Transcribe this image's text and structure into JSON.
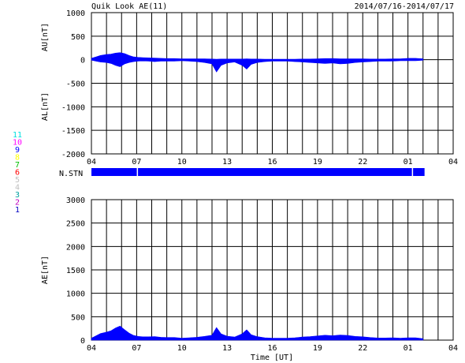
{
  "header": {
    "title": "Quik Look AE(11)",
    "date_range": "2014/07/16-2014/07/17"
  },
  "colors": {
    "fill": "#0000ff",
    "grid": "#000000"
  },
  "station_label": "N.STN",
  "chart_data": [
    {
      "type": "area",
      "name": "AU/AL",
      "ylabel_upper": "AU[nT]",
      "ylabel_lower": "AL[nT]",
      "xlabel": "",
      "ylim": [
        -2000,
        1000
      ],
      "xlim": [
        4,
        28
      ],
      "x_tick_labels": [
        "04",
        "07",
        "10",
        "13",
        "16",
        "19",
        "22",
        "01",
        "04"
      ],
      "y_ticks": [
        1000,
        500,
        0,
        -500,
        -1000,
        -1500,
        -2000
      ],
      "grid": true,
      "au": {
        "x": [
          4.0,
          4.3,
          4.6,
          5.0,
          5.3,
          5.6,
          5.9,
          6.2,
          6.5,
          6.8,
          7.1,
          7.4,
          7.8,
          8.2,
          8.6,
          9.0,
          9.5,
          10.0,
          10.5,
          11.0,
          11.5,
          12.0,
          12.3,
          12.6,
          13.0,
          13.5,
          14.0,
          14.3,
          14.6,
          15.0,
          15.5,
          16.0,
          16.5,
          17.0,
          17.5,
          18.0,
          18.5,
          19.0,
          19.5,
          20.0,
          20.5,
          21.0,
          21.5,
          22.0,
          22.5,
          23.0,
          23.5,
          24.0,
          24.5,
          25.0,
          25.5,
          26.0
        ],
        "y": [
          30,
          60,
          90,
          110,
          120,
          140,
          150,
          130,
          90,
          60,
          50,
          45,
          40,
          35,
          30,
          25,
          25,
          20,
          20,
          20,
          20,
          15,
          10,
          15,
          15,
          15,
          15,
          20,
          15,
          15,
          10,
          10,
          10,
          10,
          10,
          15,
          15,
          20,
          25,
          25,
          20,
          20,
          20,
          20,
          15,
          15,
          15,
          20,
          20,
          30,
          30,
          20
        ]
      },
      "al": {
        "x": [
          4.0,
          4.3,
          4.6,
          5.0,
          5.3,
          5.6,
          5.9,
          6.2,
          6.5,
          6.8,
          7.1,
          7.4,
          7.8,
          8.2,
          8.6,
          9.0,
          9.5,
          10.0,
          10.5,
          11.0,
          11.5,
          12.0,
          12.3,
          12.6,
          13.0,
          13.5,
          14.0,
          14.3,
          14.6,
          15.0,
          15.5,
          16.0,
          16.5,
          17.0,
          17.5,
          18.0,
          18.5,
          19.0,
          19.5,
          20.0,
          20.5,
          21.0,
          21.5,
          22.0,
          22.5,
          23.0,
          23.5,
          24.0,
          24.5,
          25.0,
          25.5,
          26.0
        ],
        "y": [
          -10,
          -30,
          -50,
          -60,
          -80,
          -120,
          -150,
          -90,
          -60,
          -40,
          -30,
          -25,
          -30,
          -40,
          -30,
          -30,
          -30,
          -20,
          -30,
          -40,
          -60,
          -90,
          -260,
          -120,
          -70,
          -50,
          -120,
          -200,
          -100,
          -60,
          -40,
          -30,
          -30,
          -30,
          -40,
          -50,
          -60,
          -70,
          -80,
          -70,
          -90,
          -80,
          -60,
          -50,
          -40,
          -30,
          -30,
          -30,
          -20,
          -20,
          -20,
          -10
        ]
      }
    },
    {
      "type": "area",
      "name": "AE",
      "ylabel": "AE[nT]",
      "xlabel": "Time [UT]",
      "ylim": [
        0,
        3000
      ],
      "xlim": [
        4,
        28
      ],
      "x_tick_labels": [
        "04",
        "07",
        "10",
        "13",
        "16",
        "19",
        "22",
        "01",
        "04"
      ],
      "y_ticks": [
        3000,
        2500,
        2000,
        1500,
        1000,
        500,
        0
      ],
      "grid": true,
      "x": [
        4.0,
        4.3,
        4.6,
        5.0,
        5.3,
        5.6,
        5.9,
        6.2,
        6.5,
        6.8,
        7.1,
        7.4,
        7.8,
        8.2,
        8.6,
        9.0,
        9.5,
        10.0,
        10.5,
        11.0,
        11.5,
        12.0,
        12.3,
        12.6,
        13.0,
        13.5,
        14.0,
        14.3,
        14.6,
        15.0,
        15.5,
        16.0,
        16.5,
        17.0,
        17.5,
        18.0,
        18.5,
        19.0,
        19.5,
        20.0,
        20.5,
        21.0,
        21.5,
        22.0,
        22.5,
        23.0,
        23.5,
        24.0,
        24.5,
        25.0,
        25.5,
        26.0
      ],
      "values": [
        40,
        90,
        140,
        170,
        200,
        260,
        300,
        220,
        150,
        100,
        80,
        70,
        70,
        75,
        60,
        55,
        55,
        40,
        50,
        60,
        80,
        105,
        270,
        135,
        85,
        65,
        135,
        220,
        115,
        75,
        50,
        40,
        40,
        40,
        50,
        65,
        75,
        90,
        105,
        95,
        110,
        100,
        80,
        70,
        55,
        45,
        45,
        50,
        40,
        50,
        50,
        30
      ]
    }
  ],
  "station_bar": {
    "x_start": 4.0,
    "x_end": 26.1,
    "gaps": [
      7.05,
      25.3
    ]
  },
  "legend": {
    "items": [
      {
        "label": "11",
        "color": "#00e0e0"
      },
      {
        "label": "10",
        "color": "#ff00ff"
      },
      {
        "label": "9",
        "color": "#0000ff"
      },
      {
        "label": "8",
        "color": "#ffff00"
      },
      {
        "label": "7",
        "color": "#00c000"
      },
      {
        "label": "6",
        "color": "#ff0000"
      },
      {
        "label": "5",
        "color": "#c0c0c0"
      },
      {
        "label": "4",
        "color": "#c0c0c0"
      },
      {
        "label": "3",
        "color": "#00a0a0"
      },
      {
        "label": "2",
        "color": "#c000c0"
      },
      {
        "label": "1",
        "color": "#0000c0"
      }
    ]
  }
}
